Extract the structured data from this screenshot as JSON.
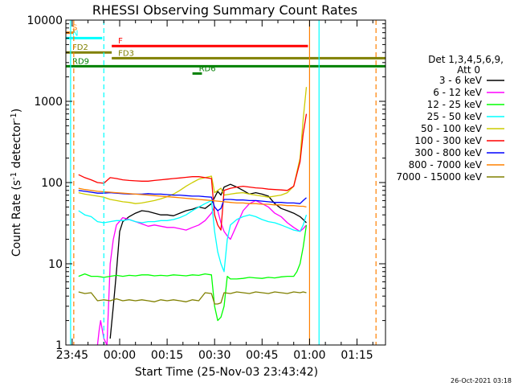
{
  "chart_data": {
    "type": "line",
    "title": "RHESSI Observing Summary Count Rates",
    "xlabel": "Start Time (25-Nov-03 23:43:42)",
    "ylabel": "Count Rate (s",
    "ylabel_sup": "-1",
    "ylabel_mid": " detector",
    "ylabel_end": ")",
    "footer": "26-Oct-2021 03:18",
    "yscale": "log",
    "ylim": [
      1,
      10000
    ],
    "xlim_minutes": [
      -2.0,
      99.0
    ],
    "xticks": [
      {
        "label": "23:45",
        "minute": 0
      },
      {
        "label": "00:00",
        "minute": 15
      },
      {
        "label": "00:15",
        "minute": 30
      },
      {
        "label": "00:30",
        "minute": 45
      },
      {
        "label": "00:45",
        "minute": 60
      },
      {
        "label": "01:00",
        "minute": 75
      },
      {
        "label": "01:15",
        "minute": 90
      }
    ],
    "yticks": [
      {
        "label": "1",
        "value": 1
      },
      {
        "label": "10",
        "value": 10
      },
      {
        "label": "100",
        "value": 100
      },
      {
        "label": "1000",
        "value": 1000
      },
      {
        "label": "10000",
        "value": 10000
      }
    ],
    "legend_header": [
      "Det 1,3,4,5,6,9,",
      "Att 0"
    ],
    "series": [
      {
        "name": "3 - 6 keV",
        "color": "#000000",
        "x": [
          12,
          13,
          14,
          15,
          16,
          18,
          20,
          22,
          24,
          26,
          28,
          30,
          32,
          34,
          36,
          38,
          40,
          42,
          44,
          46,
          47,
          48,
          50,
          52,
          54,
          56,
          58,
          60,
          62,
          64,
          66,
          68,
          70,
          72,
          73,
          74
        ],
        "y": [
          1.2,
          3,
          8,
          25,
          33,
          38,
          42,
          45,
          44,
          42,
          40,
          40,
          39,
          42,
          45,
          47,
          50,
          48,
          55,
          78,
          70,
          88,
          95,
          88,
          80,
          72,
          75,
          72,
          68,
          55,
          48,
          45,
          42,
          38,
          35,
          32
        ]
      },
      {
        "name": "6 - 12 keV",
        "color": "#ff00ff",
        "x": [
          8,
          8.5,
          9,
          10,
          11,
          12,
          13,
          14,
          16,
          18,
          20,
          22,
          24,
          26,
          28,
          30,
          32,
          34,
          36,
          38,
          40,
          42,
          44,
          45,
          46,
          47,
          48,
          49,
          50,
          52,
          54,
          56,
          58,
          60,
          62,
          64,
          66,
          68,
          70,
          72,
          73,
          74
        ],
        "y": [
          1,
          1.5,
          2,
          1.2,
          1,
          10,
          20,
          30,
          37,
          35,
          33,
          31,
          29,
          30,
          29,
          28,
          28,
          27,
          26,
          28,
          30,
          34,
          42,
          50,
          45,
          32,
          25,
          22,
          20,
          30,
          45,
          55,
          60,
          55,
          50,
          42,
          38,
          32,
          28,
          25,
          27,
          30
        ]
      },
      {
        "name": "12 - 25 keV",
        "color": "#00ff00",
        "x": [
          2,
          4,
          6,
          8,
          10,
          12,
          14,
          16,
          18,
          20,
          22,
          24,
          26,
          28,
          30,
          32,
          34,
          36,
          38,
          40,
          42,
          44,
          45,
          46,
          47,
          48,
          49,
          50,
          52,
          54,
          56,
          58,
          60,
          62,
          64,
          66,
          68,
          70,
          71,
          72,
          73,
          74
        ],
        "y": [
          7,
          7.5,
          7,
          7,
          6.8,
          7,
          7.2,
          7,
          7.2,
          7.1,
          7.3,
          7.3,
          7.1,
          7.2,
          7.1,
          7.3,
          7.2,
          7.1,
          7.3,
          7.2,
          7.5,
          7.3,
          3,
          2,
          2.2,
          3,
          7,
          6.5,
          6.5,
          6.6,
          6.8,
          6.7,
          6.6,
          6.8,
          6.7,
          6.9,
          7,
          7,
          8,
          10,
          16,
          30
        ]
      },
      {
        "name": "25 - 50 keV",
        "color": "#00ffff",
        "x": [
          2,
          4,
          6,
          8,
          10,
          12,
          14,
          16,
          18,
          20,
          22,
          24,
          26,
          28,
          30,
          32,
          34,
          36,
          38,
          40,
          42,
          44,
          45,
          46,
          47,
          48,
          49,
          50,
          52,
          54,
          56,
          58,
          60,
          62,
          64,
          66,
          68,
          70,
          72,
          73,
          74
        ],
        "y": [
          45,
          40,
          38,
          33,
          32,
          33,
          34,
          34,
          35,
          33,
          32,
          33,
          33,
          34,
          34,
          35,
          37,
          40,
          45,
          50,
          55,
          60,
          25,
          14,
          10,
          8,
          20,
          30,
          35,
          38,
          40,
          38,
          35,
          33,
          32,
          30,
          28,
          26,
          25,
          30,
          40
        ]
      },
      {
        "name": "50 - 100 keV",
        "color": "#cccc00",
        "x": [
          2,
          4,
          6,
          8,
          10,
          12,
          14,
          16,
          18,
          20,
          22,
          24,
          26,
          28,
          30,
          32,
          34,
          36,
          38,
          40,
          42,
          44,
          45,
          46,
          47,
          48,
          50,
          52,
          54,
          56,
          58,
          60,
          62,
          64,
          66,
          68,
          70,
          72,
          73,
          74
        ],
        "y": [
          75,
          72,
          70,
          68,
          66,
          62,
          60,
          58,
          57,
          55,
          56,
          58,
          60,
          63,
          67,
          72,
          80,
          90,
          100,
          110,
          115,
          120,
          75,
          80,
          85,
          70,
          72,
          74,
          75,
          72,
          70,
          68,
          66,
          68,
          70,
          75,
          90,
          200,
          600,
          1500
        ]
      },
      {
        "name": "100 - 300 keV",
        "color": "#ff0000",
        "x": [
          2,
          4,
          6,
          8,
          10,
          12,
          14,
          16,
          18,
          20,
          22,
          24,
          26,
          28,
          30,
          32,
          34,
          36,
          38,
          40,
          42,
          44,
          45,
          46,
          47,
          48,
          50,
          52,
          54,
          56,
          58,
          60,
          62,
          64,
          66,
          68,
          70,
          72,
          73,
          74
        ],
        "y": [
          125,
          115,
          108,
          100,
          98,
          115,
          112,
          108,
          106,
          105,
          104,
          104,
          106,
          108,
          110,
          112,
          114,
          116,
          118,
          118,
          115,
          112,
          40,
          30,
          26,
          80,
          85,
          88,
          90,
          88,
          86,
          85,
          83,
          82,
          81,
          80,
          90,
          180,
          400,
          700
        ]
      },
      {
        "name": "300 - 800 keV",
        "color": "#0000ff",
        "x": [
          2,
          4,
          6,
          8,
          10,
          12,
          14,
          16,
          18,
          20,
          22,
          24,
          26,
          28,
          30,
          32,
          34,
          36,
          38,
          40,
          42,
          44,
          45,
          46,
          47,
          48,
          50,
          52,
          54,
          56,
          58,
          60,
          62,
          64,
          66,
          68,
          70,
          72,
          73,
          74
        ],
        "y": [
          80,
          78,
          76,
          74,
          74,
          75,
          74,
          73,
          72,
          72,
          72,
          73,
          72,
          72,
          71,
          70,
          70,
          69,
          68,
          68,
          67,
          66,
          50,
          45,
          48,
          62,
          62,
          61,
          61,
          60,
          60,
          59,
          58,
          57,
          57,
          56,
          56,
          55,
          60,
          65
        ]
      },
      {
        "name": "800 - 7000 keV",
        "color": "#ff8000",
        "x": [
          2,
          4,
          6,
          8,
          10,
          12,
          14,
          16,
          18,
          20,
          22,
          24,
          26,
          28,
          30,
          32,
          34,
          36,
          38,
          40,
          42,
          44,
          46,
          48,
          50,
          52,
          54,
          56,
          58,
          60,
          62,
          64,
          66,
          68,
          70,
          72,
          73,
          74
        ],
        "y": [
          85,
          82,
          80,
          78,
          77,
          76,
          75,
          74,
          73,
          72,
          71,
          70,
          69,
          68,
          67,
          66,
          65,
          64,
          63,
          62,
          61,
          60,
          59,
          58,
          57,
          56,
          56,
          55,
          55,
          54,
          54,
          53,
          53,
          52,
          52,
          51,
          51,
          50
        ]
      },
      {
        "name": "7000 - 15000 keV",
        "color": "#808000",
        "x": [
          2,
          4,
          6,
          8,
          10,
          12,
          14,
          16,
          18,
          20,
          22,
          24,
          26,
          28,
          30,
          32,
          34,
          36,
          38,
          40,
          42,
          44,
          45,
          46,
          47,
          48,
          50,
          52,
          54,
          56,
          58,
          60,
          62,
          64,
          66,
          68,
          70,
          72,
          73,
          74
        ],
        "y": [
          4.5,
          4.3,
          4.4,
          3.5,
          3.6,
          3.5,
          3.7,
          3.5,
          3.6,
          3.5,
          3.6,
          3.5,
          3.4,
          3.6,
          3.5,
          3.6,
          3.5,
          3.4,
          3.6,
          3.5,
          4.4,
          4.3,
          3.2,
          3.2,
          3.3,
          4.4,
          4.3,
          4.5,
          4.4,
          4.3,
          4.5,
          4.4,
          4.3,
          4.5,
          4.4,
          4.3,
          4.5,
          4.4,
          4.5,
          4.4
        ]
      }
    ],
    "flag_bars": [
      {
        "label": "S",
        "color": "#ff8000",
        "y": 7000,
        "x0": -2,
        "x1": 0.5
      },
      {
        "label": "N",
        "color": "#00ffff",
        "y": 6000,
        "x0": -2,
        "x1": 9.5
      },
      {
        "label": "F",
        "color": "#ff0000",
        "y": 4800,
        "x0": 12.5,
        "x1": 74.5
      },
      {
        "label": "FD2",
        "color": "#808000",
        "y": 4000,
        "x0": -2,
        "x1": 12.5
      },
      {
        "label": "FD3",
        "color": "#808000",
        "y": 3400,
        "x0": 12.5,
        "x1": 99
      },
      {
        "label": "RD9",
        "color": "#008000",
        "y": 2700,
        "x0": -2,
        "x1": 99
      },
      {
        "label": "RD6",
        "color": "#008000",
        "y": 2200,
        "x0": 38,
        "x1": 41
      }
    ],
    "vlines": [
      {
        "minute": -0.5,
        "color": "#00ffff",
        "style": "solid"
      },
      {
        "minute": 0.5,
        "color": "#ff8000",
        "style": "dashed"
      },
      {
        "minute": 10,
        "color": "#00ffff",
        "style": "dashed"
      },
      {
        "minute": 75,
        "color": "#ff8000",
        "style": "solid"
      },
      {
        "minute": 78,
        "color": "#00ffff",
        "style": "solid"
      },
      {
        "minute": 96,
        "color": "#ff8000",
        "style": "dashed"
      }
    ]
  }
}
